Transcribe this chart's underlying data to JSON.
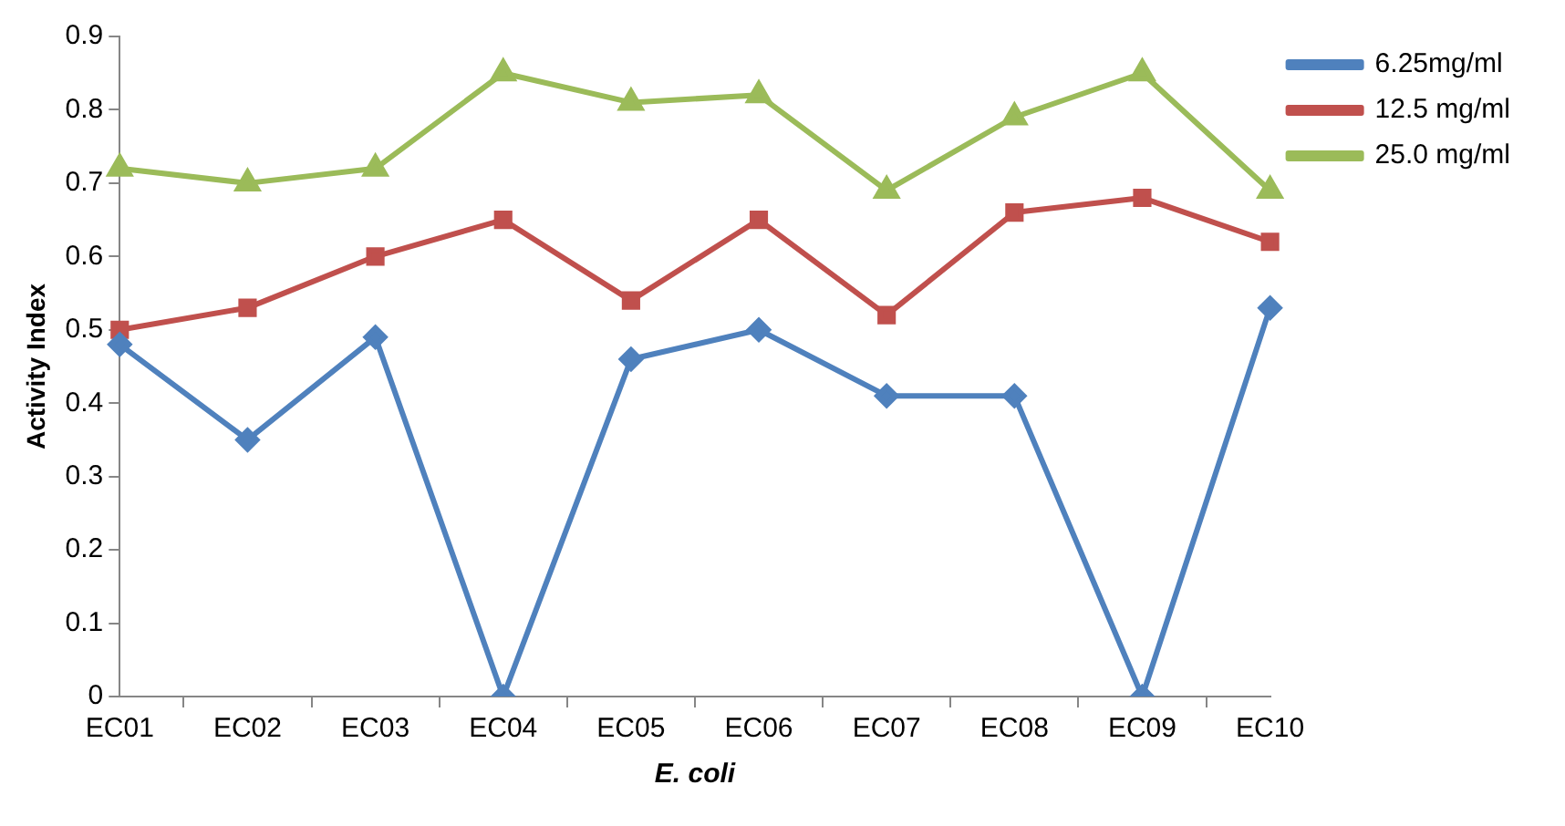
{
  "chart_data": {
    "type": "line",
    "xlabel": "E. coli",
    "ylabel": "Activity Index",
    "categories": [
      "EC01",
      "EC02",
      "EC03",
      "EC04",
      "EC05",
      "EC06",
      "EC07",
      "EC08",
      "EC09",
      "EC10"
    ],
    "series": [
      {
        "name": "6.25mg/ml",
        "color": "#4f81bd",
        "marker": "diamond",
        "values": [
          0.48,
          0.35,
          0.49,
          0,
          0.46,
          0.5,
          0.41,
          0.41,
          0,
          0.53
        ]
      },
      {
        "name": "12.5 mg/ml",
        "color": "#c0504d",
        "marker": "square",
        "values": [
          0.5,
          0.53,
          0.6,
          0.65,
          0.54,
          0.65,
          0.52,
          0.66,
          0.68,
          0.62
        ]
      },
      {
        "name": "25.0 mg/ml",
        "color": "#9bbb59",
        "marker": "triangle",
        "values": [
          0.72,
          0.7,
          0.72,
          0.85,
          0.81,
          0.82,
          0.69,
          0.79,
          0.85,
          0.69
        ]
      }
    ],
    "ylim": [
      0,
      0.9
    ],
    "yticks": [
      0,
      0.1,
      0.2,
      0.3,
      0.4,
      0.5,
      0.6,
      0.7,
      0.8,
      0.9
    ],
    "grid": false,
    "legend": "top right",
    "line_style": "solid"
  }
}
